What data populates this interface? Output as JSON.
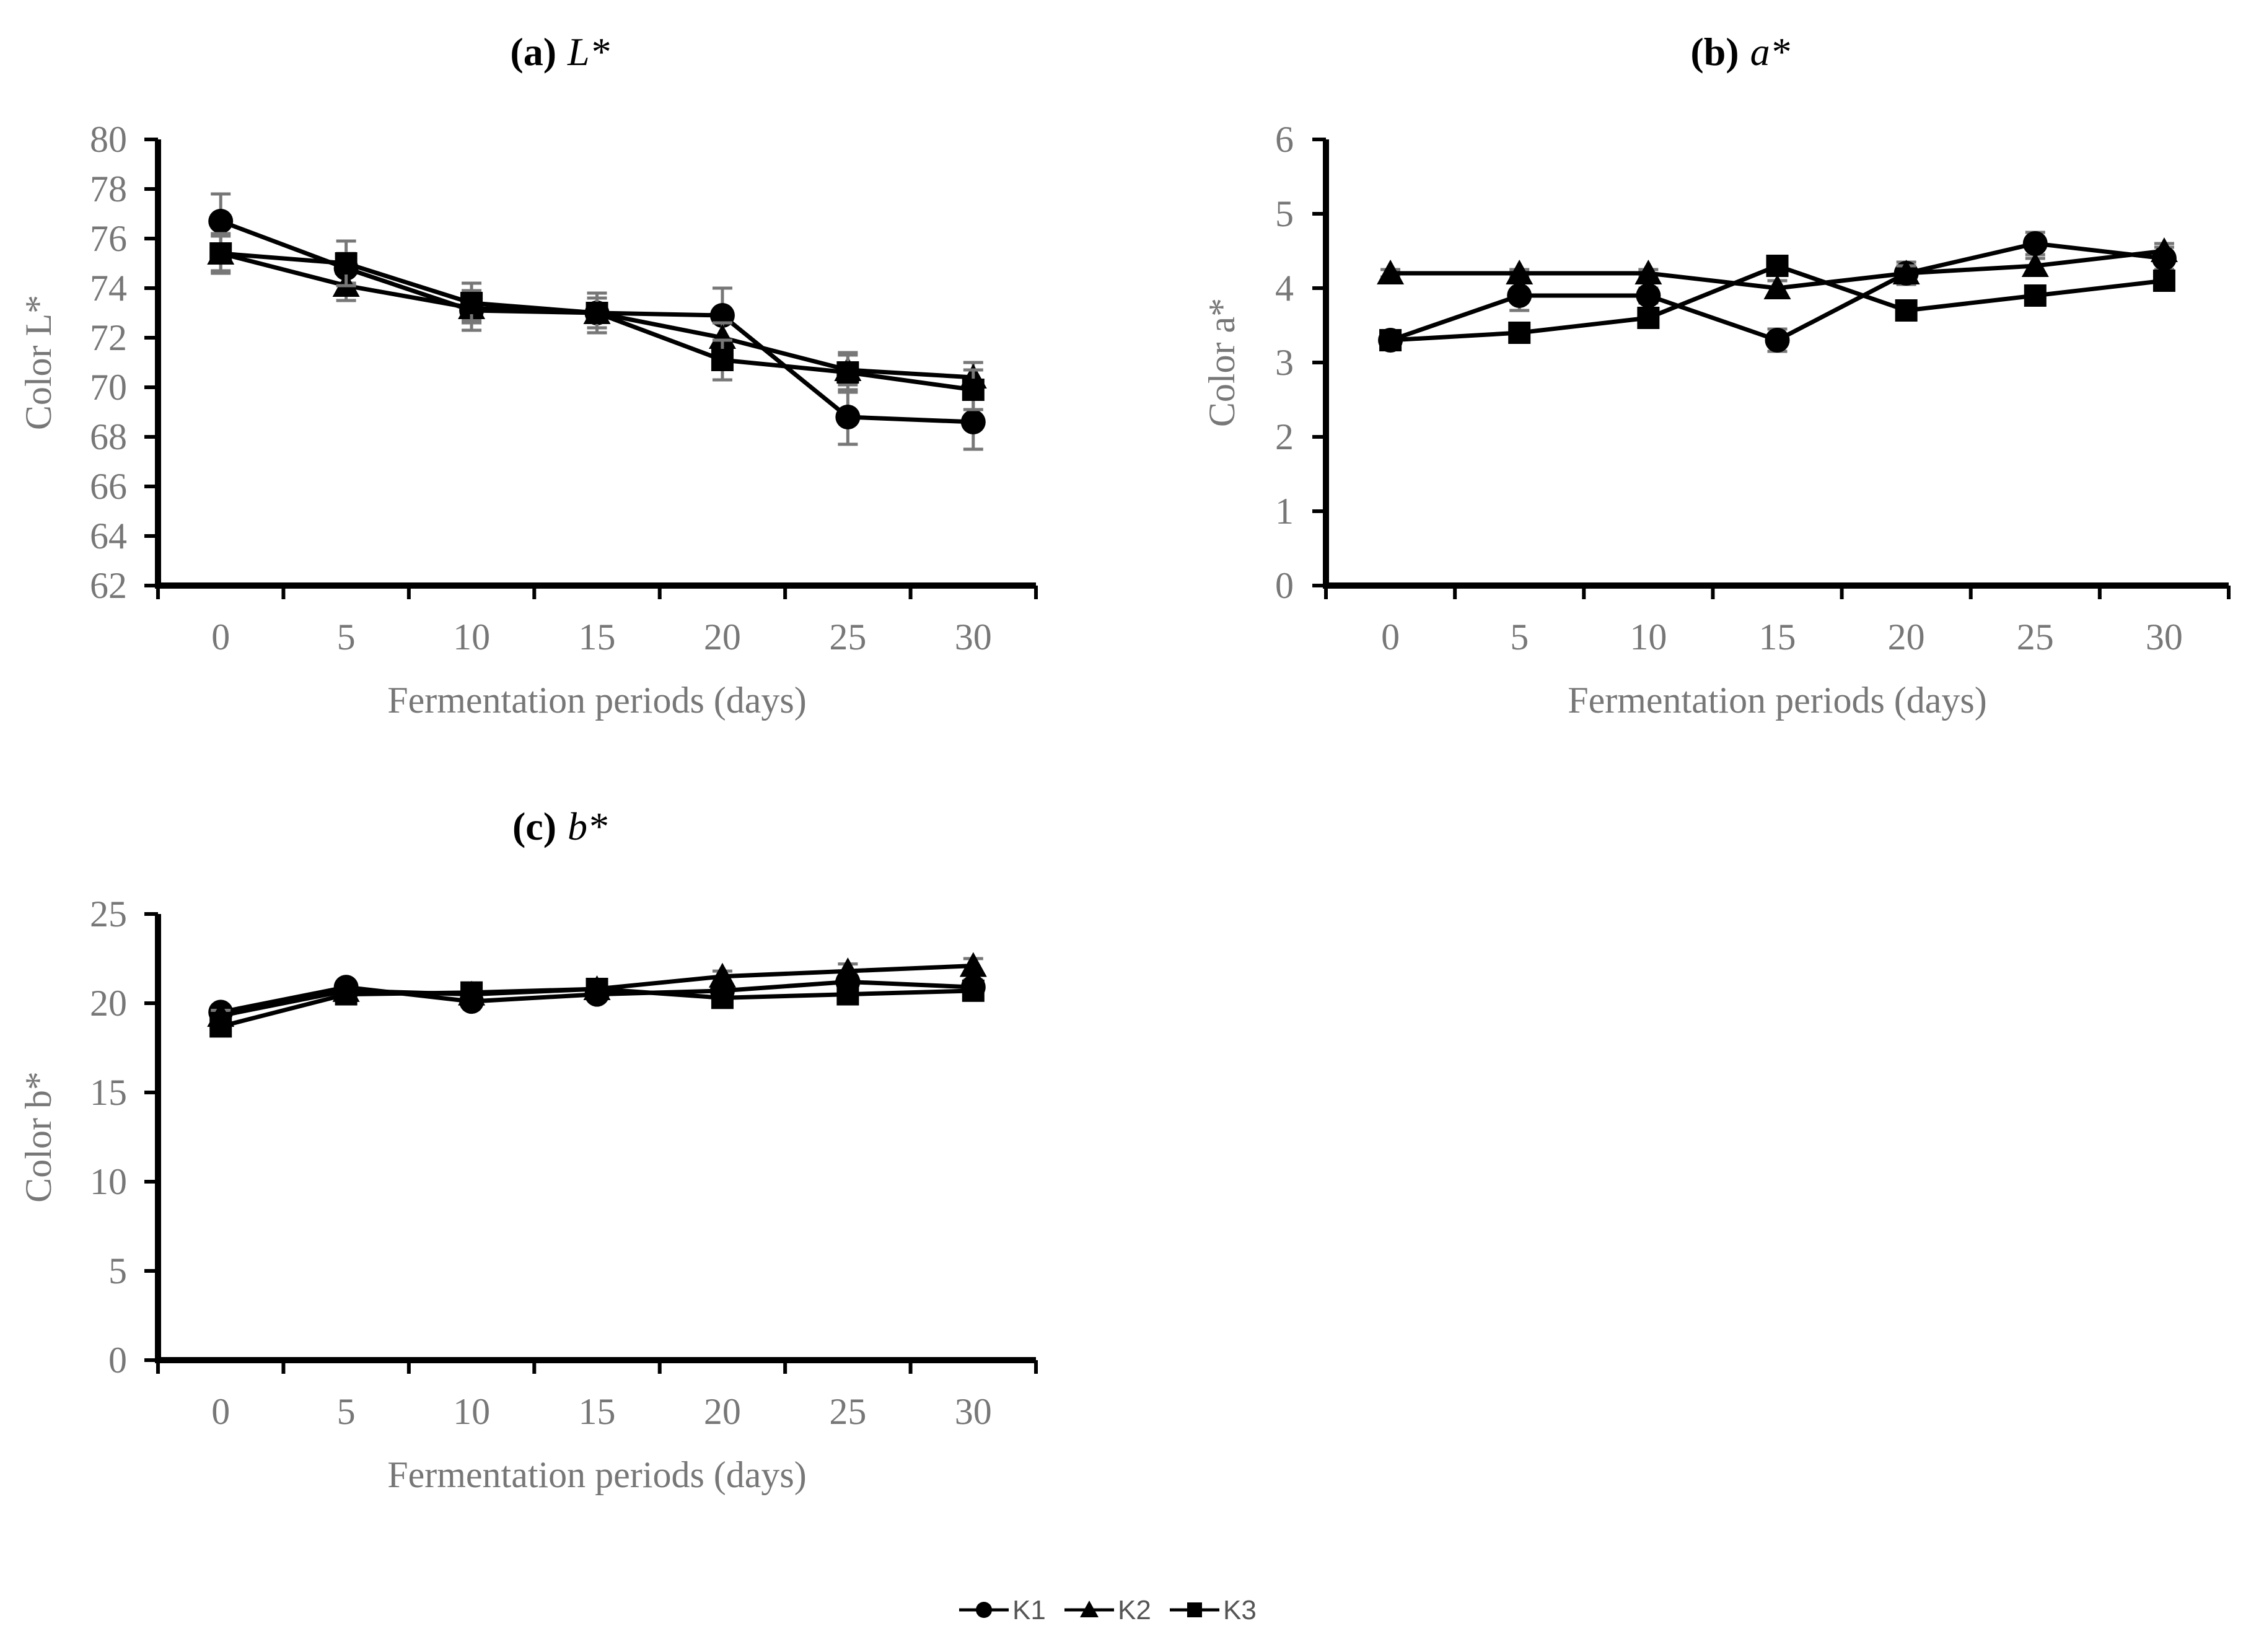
{
  "chart_data": [
    {
      "type": "line",
      "panel": "a",
      "title_prefix": "(a)",
      "title_var": "L*",
      "xlabel": "Fermentation periods (days)",
      "ylabel": "Color L*",
      "x": [
        0,
        5,
        10,
        15,
        20,
        25,
        30
      ],
      "xticks": [
        "0",
        "5",
        "10",
        "15",
        "20",
        "25",
        "30"
      ],
      "ylim": [
        62,
        80
      ],
      "yticks": [
        "62",
        "64",
        "66",
        "68",
        "70",
        "72",
        "74",
        "76",
        "78",
        "80"
      ],
      "series": [
        {
          "name": "K1",
          "marker": "circle",
          "values": [
            76.7,
            74.8,
            73.1,
            73.0,
            72.9,
            68.8,
            68.6
          ],
          "errors": [
            1.1,
            0.6,
            0.8,
            0.8,
            1.1,
            1.1,
            1.1
          ]
        },
        {
          "name": "K2",
          "marker": "triangle",
          "values": [
            75.4,
            74.1,
            73.2,
            73.0,
            72.0,
            70.7,
            70.4
          ],
          "errors": [
            0.7,
            0.6,
            0.5,
            0.6,
            0.6,
            0.6,
            0.6
          ]
        },
        {
          "name": "K3",
          "marker": "square",
          "values": [
            75.4,
            75.0,
            73.4,
            73.0,
            71.1,
            70.6,
            69.9
          ],
          "errors": [
            0.8,
            0.9,
            0.8,
            0.8,
            0.8,
            0.8,
            0.8
          ]
        }
      ]
    },
    {
      "type": "line",
      "panel": "b",
      "title_prefix": "(b)",
      "title_var": "a*",
      "xlabel": "Fermentation periods (days)",
      "ylabel": "Color a*",
      "x": [
        0,
        5,
        10,
        15,
        20,
        25,
        30
      ],
      "xticks": [
        "0",
        "5",
        "10",
        "15",
        "20",
        "25",
        "30"
      ],
      "ylim": [
        0,
        6
      ],
      "yticks": [
        "0",
        "1",
        "2",
        "3",
        "4",
        "5",
        "6"
      ],
      "series": [
        {
          "name": "K1",
          "marker": "circle",
          "values": [
            3.3,
            3.9,
            3.9,
            3.3,
            4.2,
            4.6,
            4.4
          ],
          "errors": [
            0.1,
            0.2,
            0.1,
            0.15,
            0.15,
            0.15,
            0.15
          ]
        },
        {
          "name": "K2",
          "marker": "triangle",
          "values": [
            4.2,
            4.2,
            4.2,
            4.0,
            4.2,
            4.3,
            4.5
          ],
          "errors": [
            0.05,
            0.05,
            0.05,
            0.1,
            0.1,
            0.1,
            0.1
          ]
        },
        {
          "name": "K3",
          "marker": "square",
          "values": [
            3.3,
            3.4,
            3.6,
            4.3,
            3.7,
            3.9,
            4.1
          ],
          "errors": [
            0.1,
            0.1,
            0.1,
            0.1,
            0.1,
            0.1,
            0.1
          ]
        }
      ]
    },
    {
      "type": "line",
      "panel": "c",
      "title_prefix": "(c)",
      "title_var": "b*",
      "xlabel": "Fermentation periods (days)",
      "ylabel": "Color b*",
      "x": [
        0,
        5,
        10,
        15,
        20,
        25,
        30
      ],
      "xticks": [
        "0",
        "5",
        "10",
        "15",
        "20",
        "25",
        "30"
      ],
      "ylim": [
        0,
        25
      ],
      "yticks": [
        "0",
        "5",
        "10",
        "15",
        "20",
        "25"
      ],
      "series": [
        {
          "name": "K1",
          "marker": "circle",
          "values": [
            19.5,
            20.9,
            20.1,
            20.5,
            20.7,
            21.2,
            20.9
          ],
          "errors": [
            0.3,
            0.3,
            0.3,
            0.3,
            0.3,
            0.4,
            0.4
          ]
        },
        {
          "name": "K2",
          "marker": "triangle",
          "values": [
            19.3,
            20.7,
            20.5,
            20.8,
            21.5,
            21.8,
            22.1
          ],
          "errors": [
            0.3,
            0.3,
            0.3,
            0.3,
            0.3,
            0.4,
            0.4
          ]
        },
        {
          "name": "K3",
          "marker": "square",
          "values": [
            18.7,
            20.5,
            20.6,
            20.8,
            20.3,
            20.5,
            20.7
          ],
          "errors": [
            0.3,
            0.3,
            0.3,
            0.3,
            0.3,
            0.3,
            0.3
          ]
        }
      ]
    }
  ],
  "legend": {
    "placement": "bottom-center",
    "items": [
      {
        "name": "K1",
        "marker": "circle"
      },
      {
        "name": "K2",
        "marker": "triangle"
      },
      {
        "name": "K3",
        "marker": "square"
      }
    ]
  },
  "colors": {
    "series": "#000000",
    "axis": "#000000",
    "error_bar": "#777777",
    "label": "#777777"
  }
}
